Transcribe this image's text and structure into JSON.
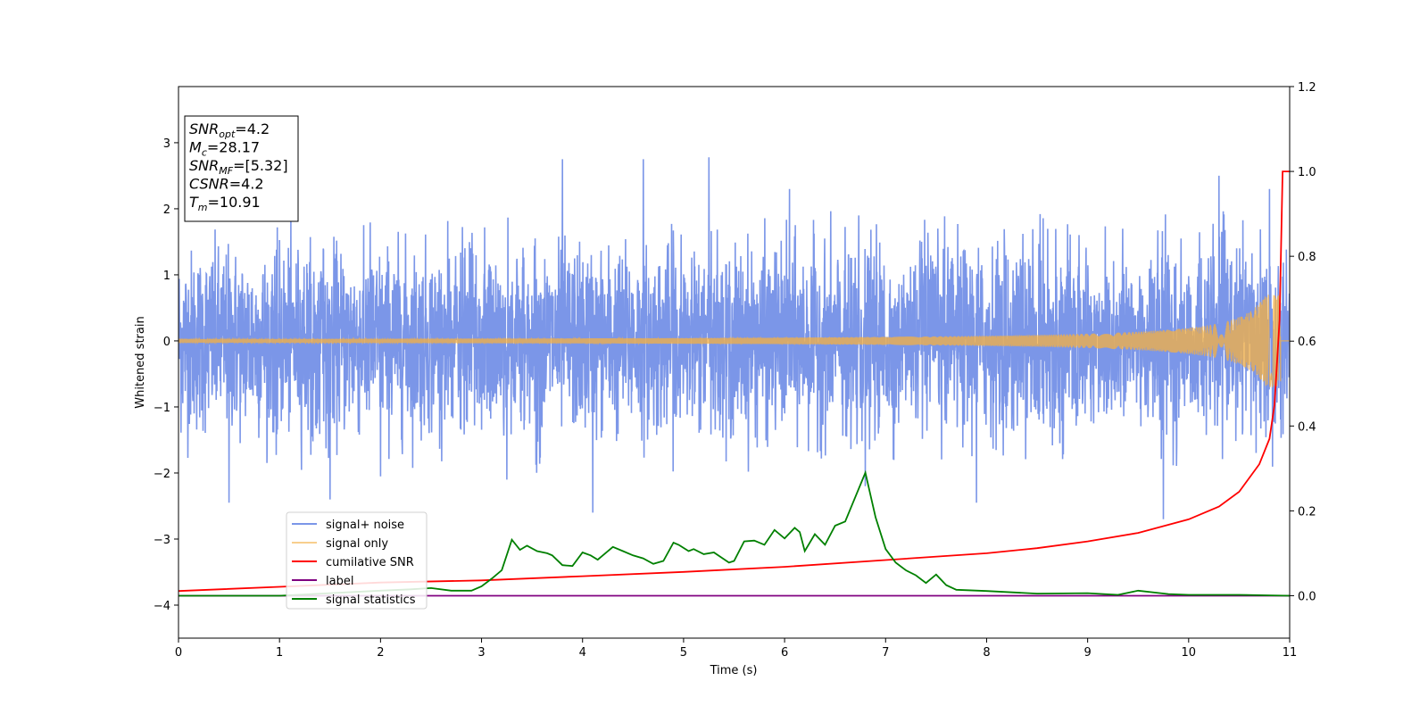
{
  "chart_data": {
    "type": "line",
    "xlabel": "Time (s)",
    "ylabel": "Whitened strain",
    "xlim": [
      0,
      11
    ],
    "ylim": [
      -4.5,
      3.85
    ],
    "y2lim": [
      -0.1,
      1.2
    ],
    "xticks": [
      0,
      1,
      2,
      3,
      4,
      5,
      6,
      7,
      8,
      9,
      10,
      11
    ],
    "yticks": [
      -4,
      -3,
      -2,
      -1,
      0,
      1,
      2,
      3
    ],
    "y2ticks": [
      "0.0",
      "0.2",
      "0.4",
      "0.6",
      "0.8",
      "1.0",
      "1.2"
    ],
    "y2tick_values": [
      0.0,
      0.2,
      0.4,
      0.6,
      0.8,
      1.0,
      1.2
    ],
    "grid": false,
    "legend_position": "lower-left",
    "info_box": [
      {
        "symbol": "SNR",
        "subscript": "opt",
        "value": "=4.2"
      },
      {
        "symbol": "M",
        "subscript": "c",
        "value": "=28.17"
      },
      {
        "symbol": "SNR",
        "subscript": "MF",
        "value": "=[5.32]"
      },
      {
        "symbol": "CSNR",
        "subscript": "",
        "value": "=4.2"
      },
      {
        "symbol": "T",
        "subscript": "m",
        "value": "=10.91"
      }
    ],
    "series": [
      {
        "name": "signal+ noise",
        "axis": "left",
        "color": "#7b96e8",
        "kind": "noise",
        "typical_range": [
          -1.3,
          1.4
        ],
        "peaks": [
          [
            0.5,
            -2.45
          ],
          [
            1.5,
            -2.4
          ],
          [
            2.0,
            -2.05
          ],
          [
            3.25,
            -2.1
          ],
          [
            3.8,
            2.75
          ],
          [
            4.1,
            -2.6
          ],
          [
            4.6,
            2.75
          ],
          [
            5.25,
            2.78
          ],
          [
            6.05,
            2.3
          ],
          [
            6.8,
            -2.2
          ],
          [
            7.9,
            -2.45
          ],
          [
            9.75,
            -2.7
          ],
          [
            10.3,
            2.5
          ],
          [
            10.8,
            2.3
          ]
        ]
      },
      {
        "name": "signal only",
        "axis": "left",
        "color": "#f5b042",
        "kind": "chirp",
        "end_time": 10.91,
        "max_amplitude": 0.7
      },
      {
        "name": "cumilative SNR",
        "axis": "right",
        "color": "#ff0000",
        "x": [
          0,
          1,
          2,
          3,
          4,
          5,
          6,
          7,
          8,
          8.5,
          9,
          9.5,
          10,
          10.3,
          10.5,
          10.7,
          10.8,
          10.85,
          10.9,
          10.93,
          10.95,
          11
        ],
        "values": [
          0.011,
          0.021,
          0.031,
          0.036,
          0.046,
          0.056,
          0.068,
          0.084,
          0.1,
          0.112,
          0.128,
          0.148,
          0.18,
          0.21,
          0.245,
          0.31,
          0.37,
          0.45,
          0.65,
          1.0,
          1.0,
          1.0
        ]
      },
      {
        "name": "label",
        "axis": "right",
        "color": "#800080",
        "x": [
          0,
          11
        ],
        "values": [
          0.0,
          0.0
        ]
      },
      {
        "name": "signal statistics",
        "axis": "right",
        "color": "#008000",
        "x": [
          0,
          1,
          2,
          2.3,
          2.5,
          2.7,
          2.9,
          3.0,
          3.1,
          3.2,
          3.3,
          3.38,
          3.45,
          3.55,
          3.65,
          3.7,
          3.8,
          3.9,
          4.0,
          4.08,
          4.15,
          4.2,
          4.3,
          4.4,
          4.5,
          4.6,
          4.7,
          4.8,
          4.9,
          4.95,
          5.05,
          5.1,
          5.2,
          5.3,
          5.45,
          5.5,
          5.6,
          5.7,
          5.8,
          5.9,
          6.0,
          6.1,
          6.15,
          6.2,
          6.3,
          6.4,
          6.5,
          6.6,
          6.8,
          6.9,
          7.0,
          7.1,
          7.2,
          7.3,
          7.4,
          7.5,
          7.6,
          7.7,
          8.0,
          8.5,
          9.0,
          9.3,
          9.5,
          9.8,
          10.0,
          10.5,
          11
        ],
        "values": [
          0.0,
          0.0,
          0.012,
          0.015,
          0.018,
          0.012,
          0.012,
          0.022,
          0.04,
          0.06,
          0.132,
          0.108,
          0.118,
          0.105,
          0.1,
          0.095,
          0.072,
          0.07,
          0.102,
          0.095,
          0.085,
          0.095,
          0.115,
          0.105,
          0.095,
          0.088,
          0.075,
          0.082,
          0.125,
          0.12,
          0.105,
          0.11,
          0.098,
          0.102,
          0.078,
          0.082,
          0.128,
          0.13,
          0.12,
          0.155,
          0.135,
          0.16,
          0.15,
          0.105,
          0.145,
          0.12,
          0.165,
          0.175,
          0.29,
          0.185,
          0.11,
          0.078,
          0.06,
          0.048,
          0.03,
          0.05,
          0.025,
          0.014,
          0.011,
          0.005,
          0.006,
          0.002,
          0.012,
          0.004,
          0.002,
          0.002,
          0.0
        ]
      }
    ]
  }
}
